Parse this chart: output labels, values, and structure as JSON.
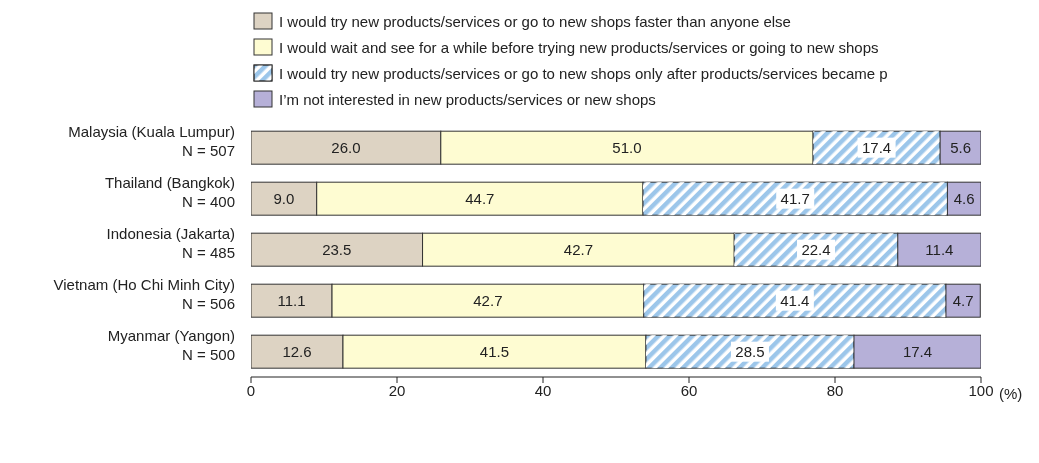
{
  "chart_data": {
    "type": "bar",
    "orientation": "horizontal",
    "stacked": true,
    "categories": [
      "Malaysia (Kuala Lumpur)\nN = 507",
      "Thailand (Bangkok)\nN = 400",
      "Indonesia (Jakarta)\nN = 485",
      "Vietnam (Ho Chi Minh City)\nN = 506",
      "Myanmar (Yangon)\nN = 500"
    ],
    "series": [
      {
        "name": "I would try new products/services or go to new shops faster than anyone else",
        "color": "#ddd3c3",
        "values": [
          26.0,
          9.0,
          23.5,
          11.1,
          12.6
        ],
        "value_labels": [
          "26.0",
          "9.0",
          "23.5",
          "11.1",
          "12.6"
        ]
      },
      {
        "name": "I would wait and see for a while before trying new products/services or going to new shops",
        "color": "#fefcd2",
        "values": [
          51.0,
          44.7,
          42.7,
          42.7,
          41.5
        ],
        "value_labels": [
          "51.0",
          "44.7",
          "42.7",
          "42.7",
          "41.5"
        ]
      },
      {
        "name": "I would try new products/services or go to new shops only after products/services became p",
        "color": "#9cc6ea",
        "values": [
          17.4,
          41.7,
          22.4,
          41.4,
          28.5
        ],
        "value_labels": [
          "17.4",
          "41.7",
          "22.4",
          "41.4",
          "28.5"
        ]
      },
      {
        "name": "I’m not interested in new products/services or new shops",
        "color": "#b6b0d8",
        "values": [
          5.6,
          4.6,
          11.4,
          4.7,
          17.4
        ],
        "value_labels": [
          "5.6",
          "4.6",
          "11.4",
          "4.7",
          "17.4"
        ]
      }
    ],
    "xlim": [
      0,
      100
    ],
    "xticks": [
      0,
      20,
      40,
      60,
      80,
      100
    ],
    "xlabel": "(%)",
    "legend": "top",
    "grid": false
  }
}
